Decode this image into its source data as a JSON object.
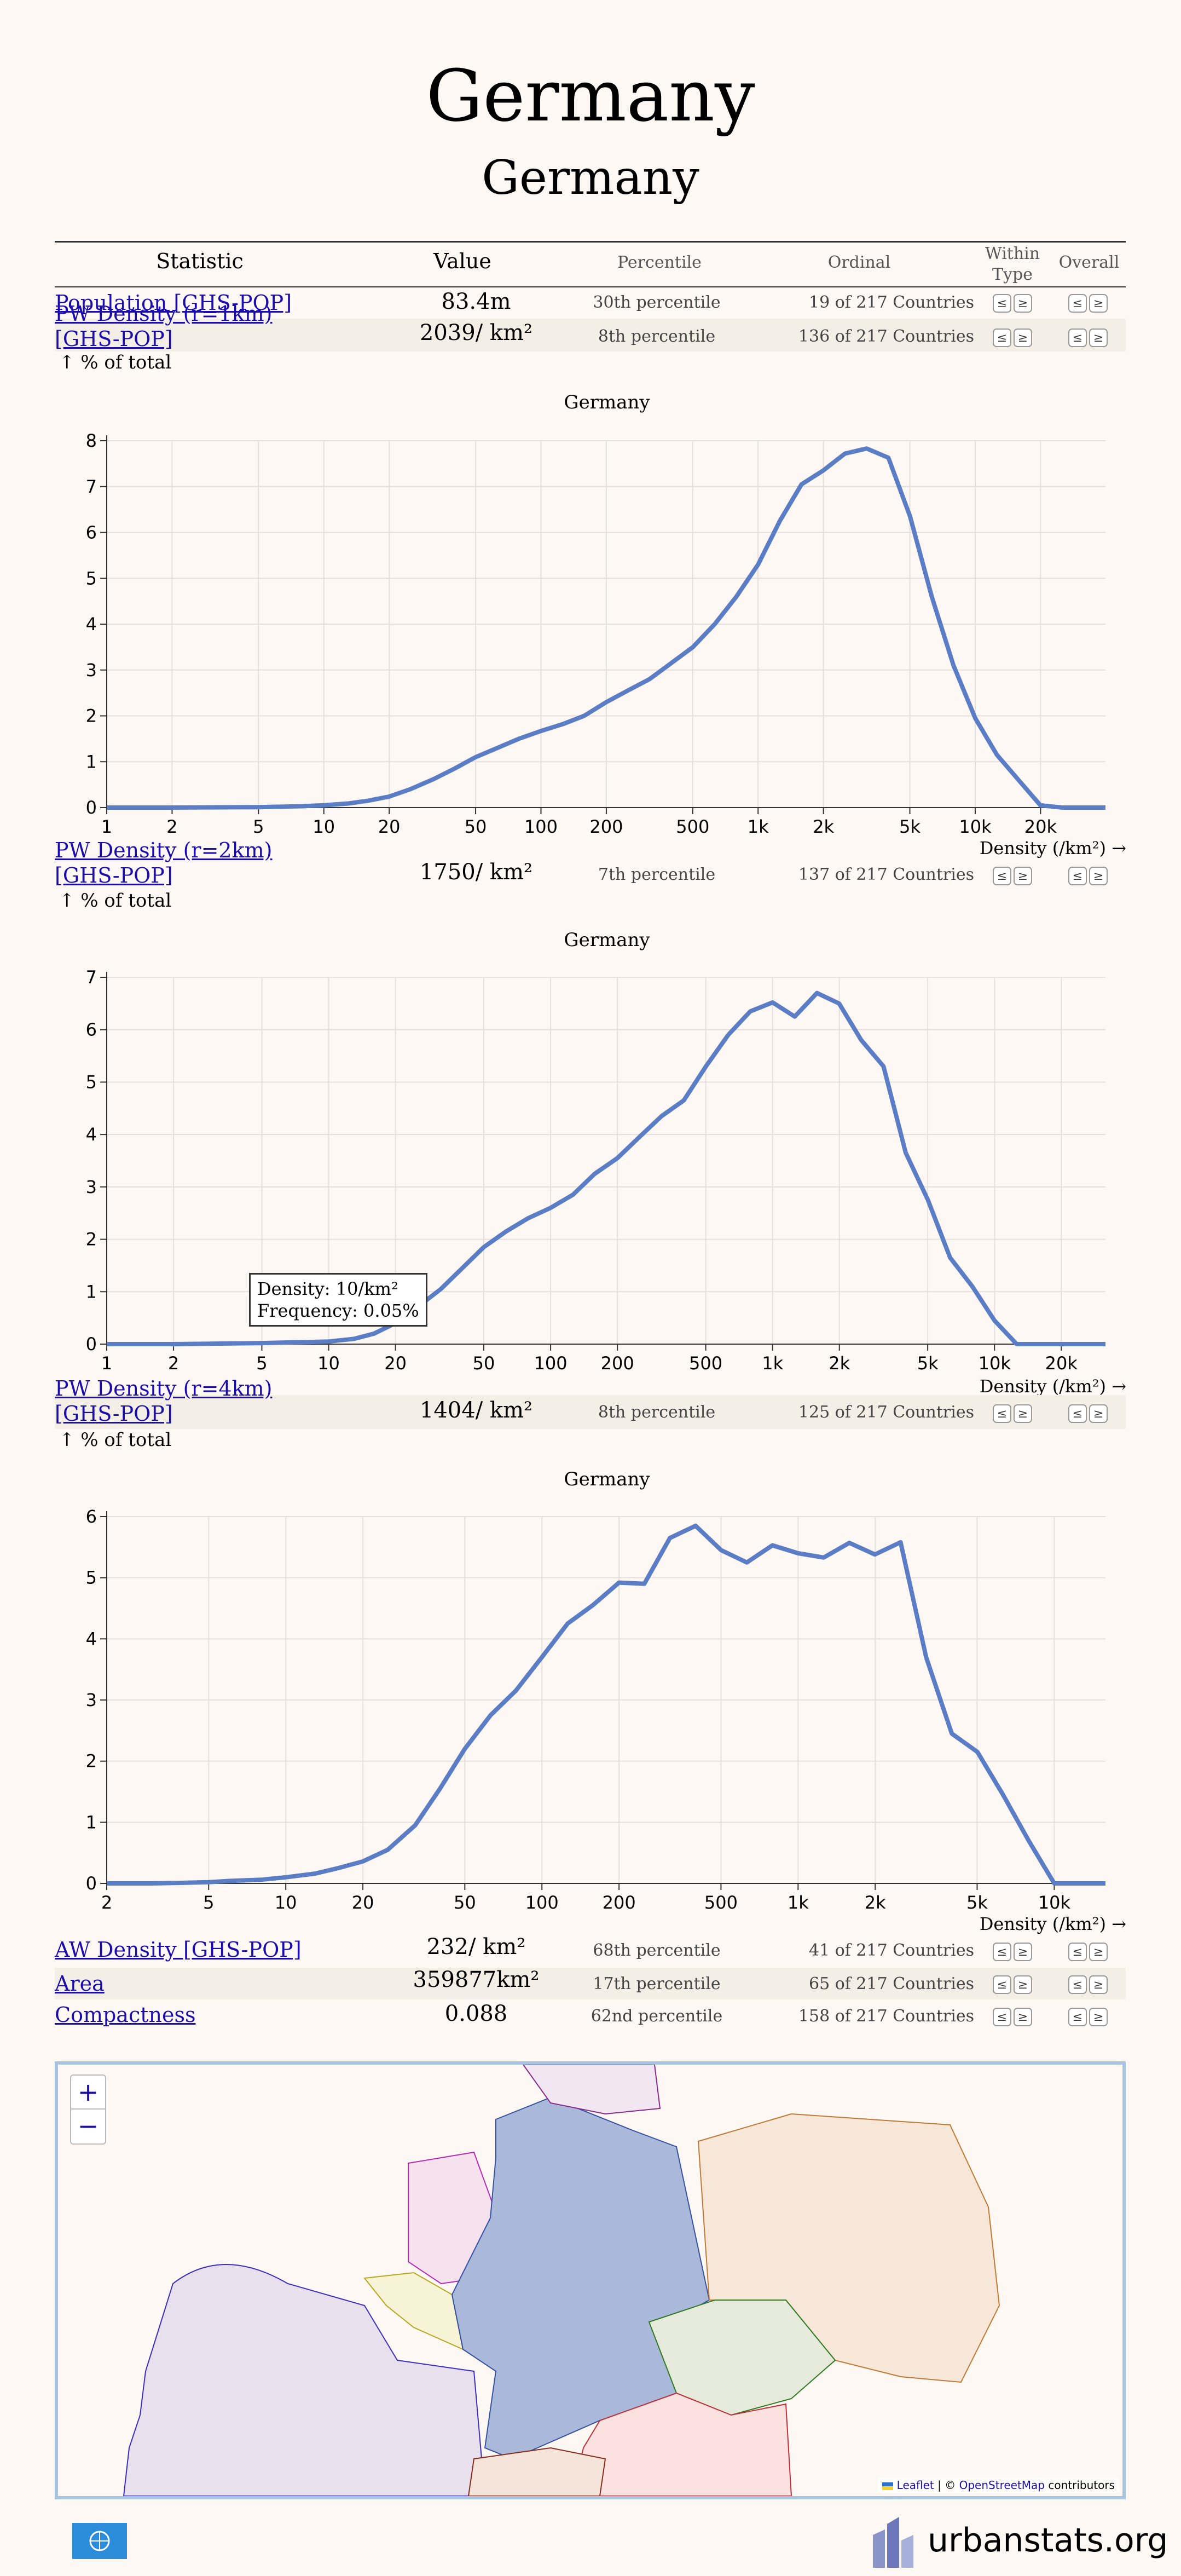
{
  "header": {
    "title": "Germany",
    "subtitle": "Germany"
  },
  "table": {
    "columns": {
      "statistic": "Statistic",
      "value": "Value",
      "percentile": "Percentile",
      "ordinal": "Ordinal",
      "within_type": "Within Type",
      "overall": "Overall"
    },
    "rows": [
      {
        "name": "Population [GHS-POP]",
        "value": "83.4",
        "unit": "m",
        "percentile": "30th percentile",
        "ordinal": "19 of 217 Countries"
      },
      {
        "name": "PW Density (r=1km) [GHS-POP]",
        "value": "2039",
        "unit": "/ km²",
        "percentile": "8th percentile",
        "ordinal": "136 of 217 Countries"
      },
      {
        "name": "PW Density (r=2km) [GHS-POP]",
        "value": "1750",
        "unit": "/ km²",
        "percentile": "7th percentile",
        "ordinal": "137 of 217 Countries"
      },
      {
        "name": "PW Density (r=4km) [GHS-POP]",
        "value": "1404",
        "unit": "/ km²",
        "percentile": "8th percentile",
        "ordinal": "125 of 217 Countries"
      },
      {
        "name": "AW Density [GHS-POP]",
        "value": "232",
        "unit": "/ km²",
        "percentile": "68th percentile",
        "ordinal": "41 of 217 Countries"
      },
      {
        "name": "Area",
        "value": "359877",
        "unit": "km²",
        "percentile": "17th percentile",
        "ordinal": "65 of 217 Countries"
      },
      {
        "name": "Compactness",
        "value": "0.088",
        "unit": "",
        "percentile": "62nd percentile",
        "ordinal": "158 of 217 Countries"
      }
    ],
    "prev_label": "≤",
    "next_label": "≥"
  },
  "pct_total_label": "↑ % of total",
  "chart_data": [
    {
      "type": "line",
      "title": "Germany",
      "xlabel": "Density (/km²) →",
      "x_scale": "log",
      "x_ticks": [
        "1",
        "2",
        "5",
        "10",
        "20",
        "50",
        "100",
        "200",
        "500",
        "1k",
        "2k",
        "5k",
        "10k",
        "20k"
      ],
      "x_tick_values": [
        1,
        2,
        5,
        10,
        20,
        50,
        100,
        200,
        500,
        1000,
        2000,
        5000,
        10000,
        20000
      ],
      "ylim": [
        0,
        8
      ],
      "y_ticks": [
        0,
        1,
        2,
        3,
        4,
        5,
        6,
        7,
        8
      ],
      "series": [
        {
          "color": "#5a7dc6",
          "x": [
            1,
            2,
            5,
            8,
            10,
            13,
            16,
            20,
            25,
            32,
            40,
            50,
            63,
            79,
            100,
            126,
            158,
            200,
            251,
            316,
            398,
            501,
            631,
            794,
            1000,
            1259,
            1585,
            1995,
            2512,
            3162,
            3981,
            5012,
            6310,
            7943,
            10000,
            12589,
            15849,
            19953,
            25119,
            31623,
            39811
          ],
          "y": [
            0,
            0,
            0.01,
            0.03,
            0.05,
            0.09,
            0.15,
            0.24,
            0.4,
            0.62,
            0.85,
            1.1,
            1.3,
            1.5,
            1.67,
            1.82,
            2.0,
            2.3,
            2.55,
            2.8,
            3.15,
            3.5,
            4.0,
            4.6,
            5.3,
            6.25,
            7.05,
            7.35,
            7.72,
            7.83,
            7.63,
            6.35,
            4.6,
            3.1,
            1.95,
            1.15,
            0.6,
            0.05,
            0,
            0,
            0
          ]
        }
      ]
    },
    {
      "type": "line",
      "title": "Germany",
      "xlabel": "Density (/km²) →",
      "x_scale": "log",
      "x_ticks": [
        "1",
        "2",
        "5",
        "10",
        "20",
        "50",
        "100",
        "200",
        "500",
        "1k",
        "2k",
        "5k",
        "10k",
        "20k"
      ],
      "x_tick_values": [
        1,
        2,
        5,
        10,
        20,
        50,
        100,
        200,
        500,
        1000,
        2000,
        5000,
        10000,
        20000
      ],
      "ylim": [
        0,
        7
      ],
      "y_ticks": [
        0,
        1,
        2,
        3,
        4,
        5,
        6,
        7
      ],
      "tooltip": {
        "density": "Density: 10/km²",
        "frequency": "Frequency: 0.05%"
      },
      "series": [
        {
          "color": "#5a7dc6",
          "x": [
            1,
            2,
            5,
            8,
            10,
            13,
            16,
            20,
            25,
            32,
            40,
            50,
            63,
            79,
            100,
            126,
            158,
            200,
            251,
            316,
            398,
            501,
            631,
            794,
            1000,
            1259,
            1585,
            1995,
            2512,
            3162,
            3981,
            5012,
            6310,
            7943,
            10000,
            12589,
            15849,
            19953,
            25119,
            31623
          ],
          "y": [
            0,
            0,
            0.02,
            0.04,
            0.05,
            0.1,
            0.2,
            0.4,
            0.7,
            1.05,
            1.45,
            1.85,
            2.15,
            2.4,
            2.6,
            2.85,
            3.25,
            3.55,
            3.95,
            4.35,
            4.65,
            5.3,
            5.9,
            6.35,
            6.52,
            6.25,
            6.7,
            6.5,
            5.8,
            5.3,
            3.65,
            2.75,
            1.65,
            1.1,
            0.45,
            0,
            0,
            0,
            0,
            0
          ]
        }
      ]
    },
    {
      "type": "line",
      "title": "Germany",
      "xlabel": "Density (/km²) →",
      "x_scale": "log",
      "x_ticks": [
        "2",
        "5",
        "10",
        "20",
        "50",
        "100",
        "200",
        "500",
        "1k",
        "2k",
        "5k",
        "10k"
      ],
      "x_tick_values": [
        2,
        5,
        10,
        20,
        50,
        100,
        200,
        500,
        1000,
        2000,
        5000,
        10000
      ],
      "ylim": [
        0,
        6
      ],
      "y_ticks": [
        0,
        1,
        2,
        3,
        4,
        5,
        6
      ],
      "series": [
        {
          "color": "#5a7dc6",
          "x": [
            2,
            3,
            4,
            5,
            6,
            8,
            10,
            13,
            16,
            20,
            25,
            32,
            40,
            50,
            63,
            79,
            100,
            126,
            158,
            200,
            251,
            316,
            398,
            501,
            631,
            794,
            1000,
            1259,
            1585,
            1995,
            2512,
            3162,
            3981,
            5012,
            6310,
            7943,
            10000,
            12589,
            15849
          ],
          "y": [
            0,
            0,
            0.01,
            0.02,
            0.04,
            0.06,
            0.1,
            0.16,
            0.25,
            0.36,
            0.55,
            0.95,
            1.55,
            2.2,
            2.75,
            3.15,
            3.7,
            4.25,
            4.55,
            4.92,
            4.9,
            5.65,
            5.85,
            5.45,
            5.25,
            5.53,
            5.4,
            5.33,
            5.57,
            5.38,
            5.58,
            3.7,
            2.45,
            2.15,
            1.45,
            0.7,
            0,
            0,
            0
          ]
        }
      ]
    }
  ],
  "map": {
    "zoom_in": "+",
    "zoom_out": "−",
    "attribution_leaflet": "Leaflet",
    "attribution_sep": "| ©",
    "attribution_osm": "OpenStreetMap",
    "attribution_suffix": "contributors"
  },
  "footer": {
    "brand": "urbanstats.org"
  }
}
